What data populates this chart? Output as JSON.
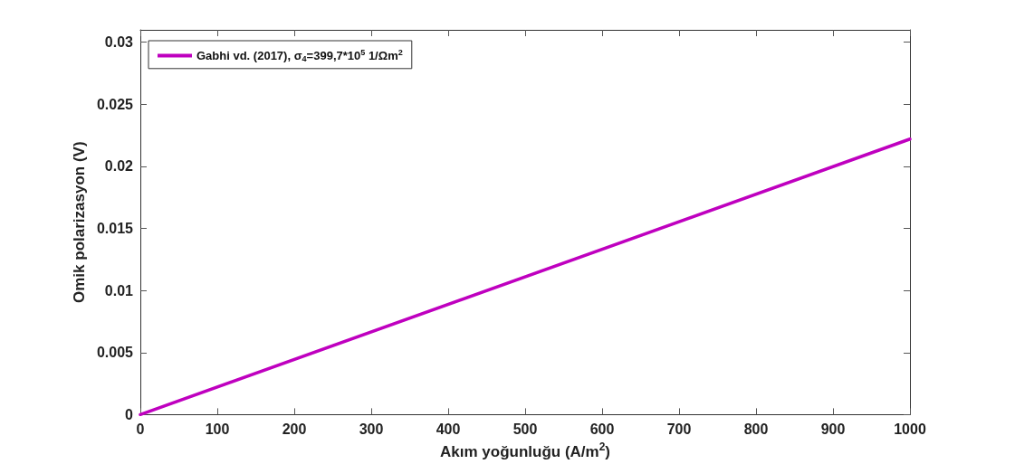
{
  "chart_data": {
    "type": "line",
    "xlabel": "Akım yoğunluğu (A/m$^{2}$)",
    "ylabel": "Omik polarizasyon (V)",
    "x": [
      0,
      1000
    ],
    "series": [
      {
        "name": "Gabhi vd. (2017), σ$_{4}$=399,7*10$^{5}$ 1/Ωm$^{2}$",
        "color": "#bf00bf",
        "values": [
          0,
          0.0222
        ]
      }
    ],
    "xlim": [
      0,
      1000
    ],
    "xticks": [
      0,
      100,
      200,
      300,
      400,
      500,
      600,
      700,
      800,
      900,
      1000
    ],
    "ylim": [
      0,
      0.031
    ],
    "yticks": [
      0,
      0.005,
      0.01,
      0.015,
      0.02,
      0.025,
      0.03
    ],
    "legend": "top left",
    "grid": false,
    "marker": "none",
    "line_style": "solid"
  }
}
